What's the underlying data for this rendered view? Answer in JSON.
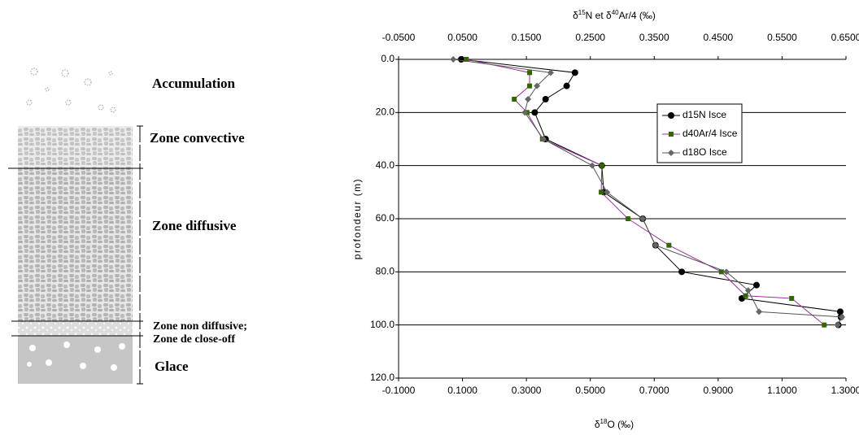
{
  "diagram": {
    "labels": [
      "Accumulation",
      "Zone convective",
      "Zone diffusive",
      "Zone non diffusive;",
      "Zone de close-off",
      "Glace"
    ]
  },
  "chart_data": {
    "type": "line",
    "x2label": [
      "δ",
      "15",
      "N et δ",
      "40",
      "Ar/4 (‰)"
    ],
    "xlabel": [
      "δ",
      "18",
      "O (‰)"
    ],
    "ylabel": "profondeur (m)",
    "x2lim": [
      -0.05,
      0.65
    ],
    "x2ticks": [
      {
        "value": -0.05,
        "label": "-0.0500"
      },
      {
        "value": 0.05,
        "label": "0.0500"
      },
      {
        "value": 0.15,
        "label": "0.1500"
      },
      {
        "value": 0.25,
        "label": "0.2500"
      },
      {
        "value": 0.35,
        "label": "0.3500"
      },
      {
        "value": 0.45,
        "label": "0.4500"
      },
      {
        "value": 0.55,
        "label": "0.5500"
      },
      {
        "value": 0.65,
        "label": "0.6500"
      }
    ],
    "xlim": [
      -0.1,
      1.3
    ],
    "xticks": [
      {
        "value": -0.1,
        "label": "-0.1000"
      },
      {
        "value": 0.1,
        "label": "0.1000"
      },
      {
        "value": 0.3,
        "label": "0.3000"
      },
      {
        "value": 0.5,
        "label": "0.5000"
      },
      {
        "value": 0.7,
        "label": "0.7000"
      },
      {
        "value": 0.9,
        "label": "0.9000"
      },
      {
        "value": 1.1,
        "label": "1.1000"
      },
      {
        "value": 1.3,
        "label": "1.3000"
      }
    ],
    "ylim": [
      0,
      120
    ],
    "y_inverted": true,
    "yticks": [
      {
        "value": 0,
        "label": "0.0"
      },
      {
        "value": 20,
        "label": "20.0"
      },
      {
        "value": 40,
        "label": "40.0"
      },
      {
        "value": 60,
        "label": "60.0"
      },
      {
        "value": 80,
        "label": "80.0"
      },
      {
        "value": 100,
        "label": "100.0"
      },
      {
        "value": 120,
        "label": "120.0"
      }
    ],
    "grid": true,
    "legend": "upper right",
    "series": [
      {
        "name": "d15N Isce",
        "axis": "x2",
        "marker": "circle",
        "color": "#000000",
        "marker_color": "#000000",
        "x": [
          0.048,
          0.226,
          0.213,
          0.18,
          0.163,
          0.18,
          0.268,
          0.271,
          0.332,
          0.352,
          0.393,
          0.51,
          0.487,
          0.641,
          0.642,
          0.638
        ],
        "y": [
          0,
          5,
          10,
          15,
          20,
          30,
          40,
          50,
          60,
          70,
          80,
          85,
          90,
          95,
          97,
          100
        ]
      },
      {
        "name": "d40Ar/4 Isce",
        "axis": "x2",
        "marker": "square",
        "color": "#993399",
        "marker_color": "#336600",
        "x": [
          0.056,
          0.155,
          0.155,
          0.131,
          0.151,
          0.175,
          0.268,
          0.267,
          0.309,
          0.373,
          0.455,
          0.493,
          0.565,
          0.616
        ],
        "y": [
          0,
          5,
          10,
          15,
          20,
          30,
          40,
          50,
          60,
          70,
          80,
          89,
          90,
          100
        ]
      },
      {
        "name": "d18O Isce",
        "axis": "x",
        "marker": "diamond",
        "color": "#555555",
        "marker_color": "#666666",
        "x": [
          0.071,
          0.376,
          0.333,
          0.305,
          0.295,
          0.353,
          0.506,
          0.552,
          0.664,
          0.704,
          0.926,
          0.994,
          1.028,
          1.287,
          1.274
        ],
        "y": [
          0,
          5,
          10,
          15,
          20,
          30,
          40,
          50,
          60,
          70,
          80,
          87,
          95,
          97,
          100
        ]
      }
    ]
  }
}
